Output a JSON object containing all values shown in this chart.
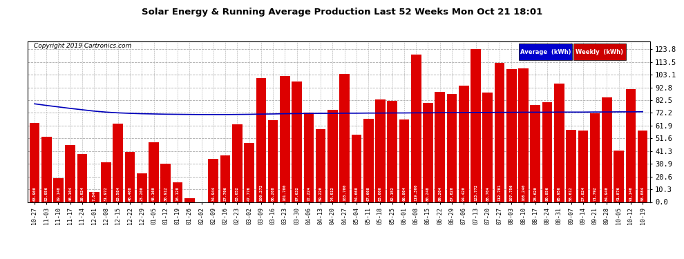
{
  "title": "Solar Energy & Running Average Production Last 52 Weeks Mon Oct 21 18:01",
  "copyright": "Copyright 2019 Cartronics.com",
  "background_color": "#ffffff",
  "plot_bg_color": "#ffffff",
  "grid_color": "#aaaaaa",
  "bar_color": "#dd0000",
  "line_color": "#0000bb",
  "yticks": [
    0.0,
    10.3,
    20.6,
    30.9,
    41.3,
    51.6,
    61.9,
    72.2,
    82.5,
    92.8,
    103.1,
    113.5,
    123.8
  ],
  "legend_avg_color": "#0000cc",
  "legend_weekly_color": "#cc0000",
  "categories": [
    "10-27",
    "11-03",
    "11-10",
    "11-17",
    "11-24",
    "12-01",
    "12-08",
    "12-15",
    "12-22",
    "12-29",
    "01-05",
    "01-12",
    "01-19",
    "01-26",
    "02-02",
    "02-09",
    "02-16",
    "02-23",
    "03-02",
    "03-09",
    "03-16",
    "03-23",
    "03-30",
    "04-06",
    "04-13",
    "04-20",
    "04-27",
    "05-04",
    "05-11",
    "05-18",
    "05-25",
    "06-01",
    "06-08",
    "06-15",
    "06-22",
    "06-29",
    "07-06",
    "07-13",
    "07-20",
    "07-27",
    "08-03",
    "08-10",
    "08-17",
    "08-24",
    "08-31",
    "09-07",
    "09-14",
    "09-21",
    "09-28",
    "10-05",
    "10-12",
    "10-19"
  ],
  "weekly_values": [
    63.908,
    52.956,
    19.148,
    46.104,
    38.924,
    7.84,
    31.972,
    63.584,
    40.408,
    23.2,
    48.16,
    30.912,
    16.128,
    3.012,
    0.0,
    34.944,
    37.796,
    63.052,
    47.776,
    100.272,
    66.208,
    101.78,
    97.632,
    72.224,
    59.22,
    74.912,
    103.7,
    54.668,
    67.608,
    83.0,
    82.152,
    66.804,
    119.3,
    80.248,
    89.204,
    87.62,
    94.42,
    123.772,
    88.704,
    112.781,
    107.756,
    108.24,
    78.62,
    80.856,
    95.956,
    58.612,
    57.824,
    71.792,
    84.94,
    41.876,
    91.14,
    58.084
  ],
  "avg_values": [
    79.5,
    78.2,
    77.0,
    75.8,
    74.7,
    73.6,
    72.8,
    72.2,
    71.8,
    71.5,
    71.3,
    71.1,
    71.0,
    70.9,
    70.8,
    70.8,
    70.8,
    70.9,
    71.0,
    71.2,
    71.3,
    71.5,
    71.6,
    71.7,
    71.8,
    71.8,
    71.9,
    71.9,
    72.0,
    72.0,
    72.1,
    72.1,
    72.2,
    72.2,
    72.3,
    72.3,
    72.4,
    72.5,
    72.5,
    72.6,
    72.6,
    72.7,
    72.7,
    72.7,
    72.8,
    72.8,
    72.8,
    72.9,
    72.9,
    73.0,
    73.0,
    73.1
  ]
}
